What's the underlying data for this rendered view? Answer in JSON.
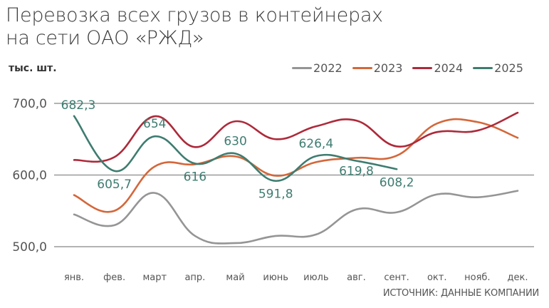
{
  "title": {
    "line1": "Перевозка всех грузов в контейнерах",
    "line2": "на сети ОАО «РЖД»"
  },
  "unit_label": "тыс. шт.",
  "legend": [
    {
      "label": "2022",
      "color": "#959595"
    },
    {
      "label": "2023",
      "color": "#d4673a"
    },
    {
      "label": "2024",
      "color": "#ad2a3a"
    },
    {
      "label": "2025",
      "color": "#3e7c70"
    }
  ],
  "source": "ИСТОЧНИК: ДАННЫЕ КОМПАНИИ",
  "chart_data": {
    "type": "line",
    "title": "Перевозка всех грузов в контейнерах на сети ОАО «РЖД»",
    "xlabel": "",
    "ylabel": "тыс. шт.",
    "ylim": [
      500,
      700
    ],
    "yticks": [
      "500,0",
      "600,0",
      "700,0"
    ],
    "grid": true,
    "legend_position": "top-right",
    "categories": [
      "янв.",
      "фев.",
      "март",
      "апр.",
      "май",
      "июнь",
      "июль",
      "авг.",
      "сент.",
      "окт.",
      "нояб.",
      "дек."
    ],
    "series": [
      {
        "name": "2022",
        "color": "#959595",
        "values": [
          545,
          530,
          575,
          515,
          505,
          515,
          517,
          552,
          548,
          573,
          569,
          578
        ]
      },
      {
        "name": "2023",
        "color": "#d4673a",
        "values": [
          572,
          550,
          612,
          615,
          626,
          599,
          618,
          624,
          627,
          672,
          674,
          652
        ]
      },
      {
        "name": "2024",
        "color": "#ad2a3a",
        "values": [
          621,
          625,
          682,
          639,
          675,
          650,
          668,
          676,
          640,
          660,
          662,
          687
        ]
      },
      {
        "name": "2025",
        "color": "#3e7c70",
        "values": [
          682.3,
          605.7,
          654,
          616,
          630,
          591.8,
          626.4,
          619.8,
          608.2,
          null,
          null,
          null
        ]
      }
    ],
    "annotations": [
      "682,3",
      "605,7",
      "654",
      "616",
      "630",
      "591,8",
      "626,4",
      "619,8",
      "608,2"
    ]
  }
}
